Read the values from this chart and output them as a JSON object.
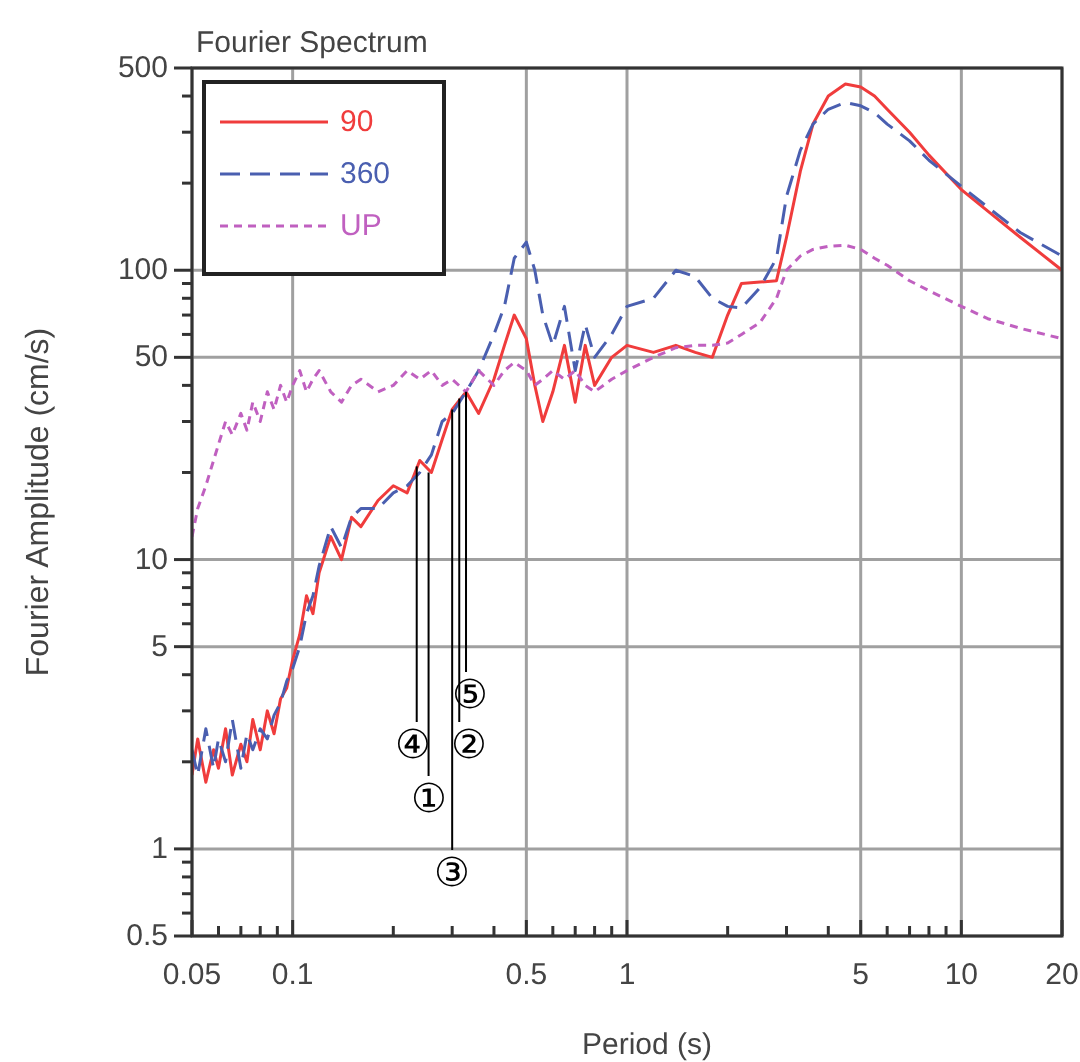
{
  "chart_data": {
    "type": "line",
    "title": "Fourier Spectrum",
    "xlabel": "Period (s)",
    "ylabel": "Fourier Amplitude (cm/s)",
    "log": "xy",
    "grid": true,
    "legend": "top left",
    "xlim": [
      0.05,
      20
    ],
    "ylim": [
      0.5,
      500
    ],
    "xticks": [
      0.05,
      {
        "value": 0.06,
        "label": null
      },
      {
        "value": 0.07,
        "label": null
      },
      {
        "value": 0.08,
        "label": null
      },
      {
        "value": 0.09,
        "label": null
      },
      0.1,
      {
        "value": 0.2,
        "label": null
      },
      {
        "value": 0.3,
        "label": null
      },
      {
        "value": 0.4,
        "label": null
      },
      0.5,
      {
        "value": 0.6,
        "label": null
      },
      {
        "value": 0.7,
        "label": null
      },
      {
        "value": 0.8,
        "label": null
      },
      {
        "value": 0.9,
        "label": null
      },
      1,
      {
        "value": 2,
        "label": null
      },
      {
        "value": 3,
        "label": null
      },
      {
        "value": 4,
        "label": null
      },
      5,
      {
        "value": 6,
        "label": null
      },
      {
        "value": 7,
        "label": null
      },
      {
        "value": 8,
        "label": null
      },
      {
        "value": 9,
        "label": null
      },
      10,
      20
    ],
    "yticks": [
      0.5,
      {
        "value": 0.6,
        "label": null
      },
      {
        "value": 0.7,
        "label": null
      },
      {
        "value": 0.8,
        "label": null
      },
      {
        "value": 0.9,
        "label": null
      },
      1,
      {
        "value": 2,
        "label": null
      },
      {
        "value": 3,
        "label": null
      },
      {
        "value": 4,
        "label": null
      },
      5,
      {
        "value": 6,
        "label": null
      },
      {
        "value": 7,
        "label": null
      },
      {
        "value": 8,
        "label": null
      },
      {
        "value": 9,
        "label": null
      },
      10,
      {
        "value": 20,
        "label": null
      },
      {
        "value": 30,
        "label": null
      },
      {
        "value": 40,
        "label": null
      },
      50,
      {
        "value": 60,
        "label": null
      },
      {
        "value": 70,
        "label": null
      },
      {
        "value": 80,
        "label": null
      },
      {
        "value": 90,
        "label": null
      },
      100,
      {
        "value": 200,
        "label": null
      },
      {
        "value": 300,
        "label": null
      },
      {
        "value": 400,
        "label": null
      },
      500
    ],
    "x": [
      0.05,
      0.052,
      0.055,
      0.058,
      0.06,
      0.063,
      0.066,
      0.07,
      0.073,
      0.076,
      0.08,
      0.084,
      0.088,
      0.092,
      0.096,
      0.1,
      0.105,
      0.11,
      0.115,
      0.12,
      0.13,
      0.14,
      0.15,
      0.16,
      0.18,
      0.2,
      0.22,
      0.24,
      0.26,
      0.28,
      0.3,
      0.33,
      0.36,
      0.4,
      0.43,
      0.46,
      0.5,
      0.53,
      0.56,
      0.6,
      0.65,
      0.7,
      0.75,
      0.8,
      0.9,
      1,
      1.2,
      1.4,
      1.6,
      1.8,
      2,
      2.2,
      2.5,
      2.8,
      3,
      3.3,
      3.6,
      4,
      4.5,
      5,
      5.5,
      6,
      7,
      8,
      10,
      12,
      15,
      20
    ],
    "series": [
      {
        "name": "90",
        "color": "#f03c3c",
        "line_style": "solid",
        "values": [
          1.8,
          2.4,
          1.7,
          2.2,
          1.9,
          2.6,
          1.8,
          2.3,
          2.0,
          2.8,
          2.2,
          3.0,
          2.5,
          3.3,
          3.6,
          4.5,
          5.5,
          7.5,
          6.5,
          9,
          12,
          10,
          14,
          13,
          16,
          18,
          17,
          22,
          20,
          26,
          33,
          38,
          32,
          42,
          55,
          70,
          58,
          40,
          30,
          38,
          55,
          35,
          55,
          40,
          50,
          55,
          52,
          55,
          52,
          50,
          70,
          90,
          91,
          92,
          130,
          220,
          320,
          400,
          440,
          430,
          400,
          360,
          300,
          250,
          190,
          160,
          130,
          100
        ]
      },
      {
        "name": "360",
        "color": "#4a5fb0",
        "line_style": "dashed",
        "values": [
          2.2,
          1.8,
          2.6,
          1.9,
          2.4,
          2.0,
          2.8,
          1.9,
          2.5,
          2.2,
          2.6,
          2.4,
          2.9,
          3.2,
          3.8,
          4.2,
          5.0,
          6.5,
          7.5,
          9.5,
          13,
          11,
          14,
          15,
          15,
          17,
          18,
          20,
          23,
          30,
          32,
          38,
          45,
          60,
          75,
          110,
          125,
          100,
          70,
          55,
          75,
          45,
          65,
          50,
          60,
          75,
          80,
          100,
          95,
          80,
          75,
          74,
          87,
          110,
          180,
          260,
          320,
          360,
          380,
          370,
          350,
          320,
          280,
          240,
          195,
          165,
          135,
          112
        ]
      },
      {
        "name": "UP",
        "color": "#c060c0",
        "line_style": "dotted",
        "values": [
          12,
          15,
          18,
          22,
          25,
          30,
          27,
          32,
          28,
          35,
          30,
          38,
          33,
          40,
          35,
          40,
          45,
          38,
          42,
          45,
          38,
          35,
          40,
          42,
          38,
          40,
          45,
          42,
          45,
          40,
          42,
          38,
          45,
          40,
          45,
          48,
          45,
          40,
          42,
          45,
          42,
          45,
          40,
          38,
          42,
          45,
          50,
          54,
          55,
          55,
          56,
          60,
          66,
          80,
          100,
          112,
          118,
          121,
          122,
          118,
          110,
          104,
          92,
          85,
          75,
          68,
          63,
          58
        ]
      }
    ],
    "annotations": [
      {
        "text": "①",
        "x": 0.255,
        "y": 20
      },
      {
        "text": "②",
        "x": 0.315,
        "y": 36
      },
      {
        "text": "③",
        "x": 0.3,
        "y": 33
      },
      {
        "text": "④",
        "x": 0.235,
        "y": 21
      },
      {
        "text": "⑤",
        "x": 0.33,
        "y": 38
      }
    ]
  }
}
